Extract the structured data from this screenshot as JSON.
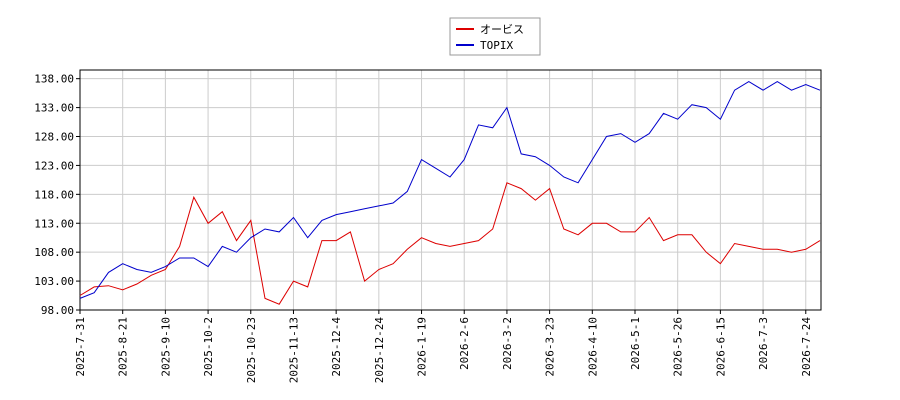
{
  "chart_data": {
    "type": "line",
    "categories": [
      "2025-7-31",
      null,
      null,
      "2025-8-21",
      null,
      null,
      "2025-9-10",
      null,
      null,
      "2025-10-2",
      null,
      null,
      "2025-10-23",
      null,
      null,
      "2025-11-13",
      null,
      null,
      "2025-12-4",
      null,
      null,
      "2025-12-24",
      null,
      null,
      "2026-1-19",
      null,
      null,
      "2026-2-6",
      null,
      null,
      "2026-3-2",
      null,
      null,
      "2026-3-23",
      null,
      null,
      "2026-4-10",
      null,
      null,
      "2026-5-1",
      null,
      null,
      "2026-5-26",
      null,
      null,
      "2026-6-15",
      null,
      null,
      "2026-7-3",
      null,
      null,
      "2026-7-24",
      null
    ],
    "series": [
      {
        "name": "オービス",
        "color": "#dd0000",
        "values": [
          100.5,
          102,
          102.2,
          101.5,
          102.5,
          104,
          105,
          109,
          117.5,
          113,
          115,
          110,
          113.5,
          100,
          99,
          103,
          102,
          110,
          110,
          111.5,
          103,
          105,
          106,
          108.5,
          110.5,
          109.5,
          109,
          109.5,
          110,
          112,
          120,
          119,
          117,
          119,
          112,
          111,
          113,
          113,
          111.5,
          111.5,
          114,
          110,
          111,
          111,
          108,
          106,
          109.5,
          109,
          108.5,
          108.5,
          108,
          108.5,
          110
        ]
      },
      {
        "name": "TOPIX",
        "color": "#0000cc",
        "values": [
          100,
          101,
          104.5,
          106,
          105,
          104.5,
          105.5,
          107,
          107,
          105.5,
          109,
          108,
          110.5,
          112,
          111.5,
          114,
          110.5,
          113.5,
          114.5,
          115,
          115.5,
          116,
          116.5,
          118.5,
          124,
          122.5,
          121,
          124,
          130,
          129.5,
          133,
          125,
          124.5,
          123,
          121,
          120,
          124,
          128,
          128.5,
          127,
          128.5,
          132,
          131,
          133.5,
          133,
          131,
          136,
          137.5,
          136,
          137.5,
          136,
          137,
          136
        ]
      }
    ],
    "ylim": [
      98,
      139.5
    ],
    "yticks": [
      {
        "value": 98,
        "label": "98.00"
      },
      {
        "value": 103,
        "label": "103.00"
      },
      {
        "value": 108,
        "label": "108.00"
      },
      {
        "value": 113,
        "label": "113.00"
      },
      {
        "value": 118,
        "label": "118.00"
      },
      {
        "value": 123,
        "label": "123.00"
      },
      {
        "value": 128,
        "label": "128.00"
      },
      {
        "value": 133,
        "label": "133.00"
      },
      {
        "value": 138,
        "label": "138.00"
      }
    ],
    "grid": true,
    "legend": "top"
  }
}
